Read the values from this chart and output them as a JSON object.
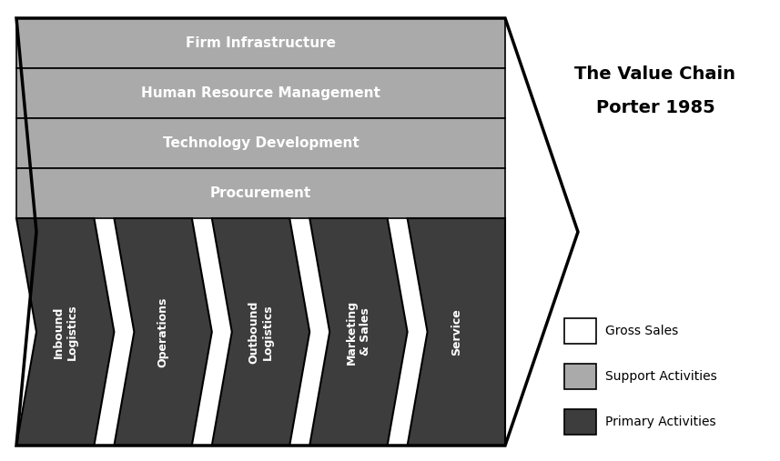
{
  "title": "The Value Chain\nPorter 1985",
  "support_activities": [
    "Firm Infrastructure",
    "Human Resource Management",
    "Technology Development",
    "Procurement"
  ],
  "primary_activities": [
    "Inbound\nLogistics",
    "Operations",
    "Outbound\nLogistics",
    "Marketing\n& Sales",
    "Service"
  ],
  "support_color": "#aaaaaa",
  "primary_color": "#3d3d3d",
  "support_text_color": "#ffffff",
  "primary_text_color": "#ffffff",
  "border_color": "#000000",
  "background_color": "#ffffff",
  "legend_items": [
    {
      "label": "Gross Sales",
      "color": "#ffffff"
    },
    {
      "label": "Support Activities",
      "color": "#aaaaaa"
    },
    {
      "label": "Primary Activities",
      "color": "#3d3d3d"
    }
  ]
}
